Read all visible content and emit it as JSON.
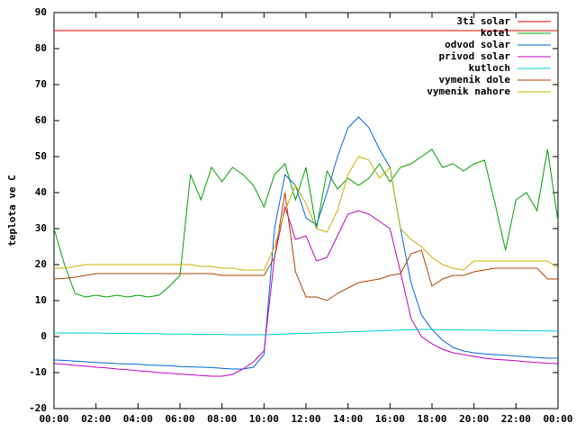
{
  "chart_data": {
    "type": "line",
    "y_label": "teplota ve C",
    "xlim": [
      0,
      24
    ],
    "ylim": [
      -20,
      90
    ],
    "xticks": [
      {
        "value": 0,
        "label": "00:00"
      },
      {
        "value": 2,
        "label": "02:00"
      },
      {
        "value": 4,
        "label": "04:00"
      },
      {
        "value": 6,
        "label": "06:00"
      },
      {
        "value": 8,
        "label": "08:00"
      },
      {
        "value": 10,
        "label": "10:00"
      },
      {
        "value": 12,
        "label": "12:00"
      },
      {
        "value": 14,
        "label": "14:00"
      },
      {
        "value": 16,
        "label": "16:00"
      },
      {
        "value": 18,
        "label": "18:00"
      },
      {
        "value": 20,
        "label": "20:00"
      },
      {
        "value": 22,
        "label": "22:00"
      },
      {
        "value": 24,
        "label": "00:00"
      }
    ],
    "yticks": [
      -20,
      -10,
      0,
      10,
      20,
      30,
      40,
      50,
      60,
      70,
      80,
      90
    ],
    "legend": "upper right",
    "x": [
      0,
      0.5,
      1,
      1.5,
      2,
      2.5,
      3,
      3.5,
      4,
      4.5,
      5,
      5.5,
      6,
      6.5,
      7,
      7.5,
      8,
      8.5,
      9,
      9.5,
      10,
      10.5,
      11,
      11.5,
      12,
      12.5,
      13,
      13.5,
      14,
      14.5,
      15,
      15.5,
      16,
      16.5,
      17,
      17.5,
      18,
      18.5,
      19,
      19.5,
      20,
      20.5,
      21,
      21.5,
      22,
      22.5,
      23,
      23.5,
      24
    ],
    "series": [
      {
        "name": "3ti solar",
        "color": "#e00000",
        "values": [
          85,
          85,
          85,
          85,
          85,
          85,
          85,
          85,
          85,
          85,
          85,
          85,
          85,
          85,
          85,
          85,
          85,
          85,
          85,
          85,
          85,
          85,
          85,
          85,
          85,
          85,
          85,
          85,
          85,
          85,
          85,
          85,
          85,
          85,
          85,
          85,
          85,
          85,
          85,
          85,
          85,
          85,
          85,
          85,
          85,
          85,
          85,
          85,
          85
        ]
      },
      {
        "name": "kotel",
        "color": "#00a000",
        "values": [
          30,
          20,
          12,
          11,
          11.5,
          11,
          11.5,
          11,
          11.5,
          11,
          11.5,
          14,
          17,
          45,
          38,
          47,
          43,
          47,
          45,
          42,
          36,
          45,
          48,
          38,
          47,
          30,
          46,
          41,
          44,
          42,
          44,
          48,
          43,
          47,
          48,
          50,
          52,
          47,
          48,
          46,
          48,
          49,
          37,
          24,
          38,
          40,
          35,
          52,
          32
        ]
      },
      {
        "name": "odvod solar",
        "color": "#0066dd",
        "values": [
          -6.5,
          -6.6,
          -6.8,
          -7,
          -7.2,
          -7.3,
          -7.5,
          -7.6,
          -7.7,
          -7.9,
          -8,
          -8.1,
          -8.3,
          -8.4,
          -8.5,
          -8.6,
          -8.8,
          -9,
          -9,
          -8.5,
          -5,
          30,
          45,
          42,
          33,
          31,
          40,
          50,
          58,
          61,
          58,
          52,
          47,
          30,
          15,
          6,
          2,
          -1,
          -3,
          -4,
          -4.5,
          -4.8,
          -5,
          -5.2,
          -5.4,
          -5.6,
          -5.8,
          -6,
          -6
        ]
      },
      {
        "name": "privod solar",
        "color": "#c000c0",
        "values": [
          -7.5,
          -7.7,
          -8,
          -8.2,
          -8.5,
          -8.7,
          -9,
          -9.2,
          -9.5,
          -9.7,
          -10,
          -10.2,
          -10.4,
          -10.6,
          -10.8,
          -11,
          -11,
          -10.5,
          -9,
          -7,
          -4,
          22,
          36,
          27,
          28,
          21,
          22,
          28,
          34,
          35,
          34,
          32,
          30,
          18,
          5,
          0,
          -2,
          -3.5,
          -4.5,
          -5,
          -5.5,
          -6,
          -6.3,
          -6.5,
          -6.7,
          -7,
          -7.2,
          -7.4,
          -7.5
        ]
      },
      {
        "name": "kutloch",
        "color": "#00cccc",
        "values": [
          1,
          1,
          1,
          1,
          1,
          0.9,
          0.9,
          0.9,
          0.8,
          0.8,
          0.8,
          0.7,
          0.7,
          0.7,
          0.6,
          0.6,
          0.6,
          0.5,
          0.5,
          0.5,
          0.5,
          0.6,
          0.7,
          0.8,
          0.9,
          1,
          1.1,
          1.2,
          1.3,
          1.4,
          1.5,
          1.6,
          1.7,
          1.8,
          1.9,
          2,
          2,
          1.9,
          1.9,
          1.8,
          1.8,
          1.8,
          1.7,
          1.7,
          1.7,
          1.6,
          1.6,
          1.6,
          1.5
        ]
      },
      {
        "name": "vymenik dole",
        "color": "#b04000",
        "values": [
          16,
          16.2,
          16.5,
          17,
          17.5,
          17.5,
          17.5,
          17.5,
          17.5,
          17.5,
          17.5,
          17.5,
          17.5,
          17.5,
          17.5,
          17.5,
          17,
          17,
          17,
          17,
          17,
          22,
          40,
          18,
          11,
          11,
          10,
          12,
          13.5,
          15,
          15.5,
          16,
          17,
          17.5,
          23,
          24,
          14,
          16,
          17,
          17,
          18,
          18.5,
          19,
          19,
          19,
          19,
          19,
          16,
          16
        ]
      },
      {
        "name": "vymenik nahore",
        "color": "#c8b000",
        "values": [
          19,
          19,
          19.5,
          20,
          20,
          20,
          20,
          20,
          20,
          20,
          20,
          20,
          20,
          20,
          19.5,
          19.5,
          19,
          19,
          18.5,
          18.5,
          18.5,
          25,
          35,
          42,
          37,
          30,
          29,
          35,
          45,
          50,
          49,
          44,
          47,
          30,
          27,
          25,
          22,
          20,
          19,
          18.5,
          21,
          21,
          21,
          21,
          21,
          21,
          21,
          21,
          19
        ]
      }
    ]
  }
}
